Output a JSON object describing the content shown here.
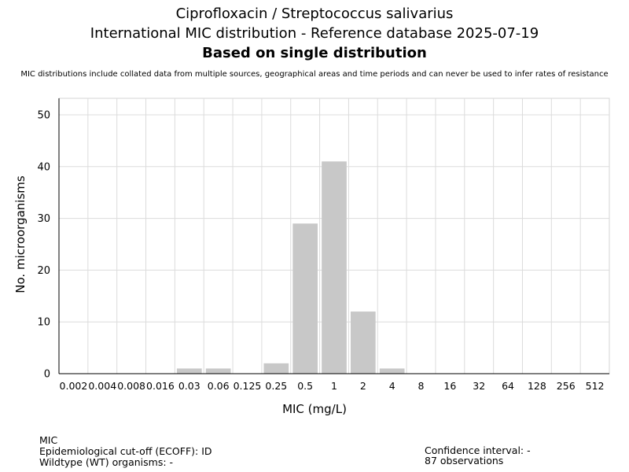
{
  "chart_data": {
    "type": "bar",
    "title": "Ciprofloxacin / Streptococcus salivarius",
    "subtitle": "International MIC distribution - Reference database 2025-07-19",
    "subtitle2": "Based on single distribution",
    "note": "MIC distributions include collated data from multiple sources, geographical areas and time periods and can never be used to infer rates of resistance",
    "xlabel": "MIC (mg/L)",
    "ylabel": "No. microorganisms",
    "categories": [
      "0.002",
      "0.004",
      "0.008",
      "0.016",
      "0.03",
      "0.06",
      "0.125",
      "0.25",
      "0.5",
      "1",
      "2",
      "4",
      "8",
      "16",
      "32",
      "64",
      "128",
      "256",
      "512"
    ],
    "values": [
      0,
      0,
      0,
      0,
      1,
      1,
      0,
      2,
      29,
      41,
      12,
      1,
      0,
      0,
      0,
      0,
      0,
      0,
      0
    ],
    "ylim": [
      0,
      50
    ],
    "yticks": [
      "0",
      "10",
      "20",
      "30",
      "40",
      "50"
    ],
    "bar_color": "#c8c8c8",
    "grid": true
  },
  "footer": {
    "mic": "MIC",
    "ecoff": "Epidemiological cut-off (ECOFF): ID",
    "wt": "Wildtype (WT) organisms:  -",
    "ci": "Confidence interval: -",
    "observations": "87 observations"
  }
}
